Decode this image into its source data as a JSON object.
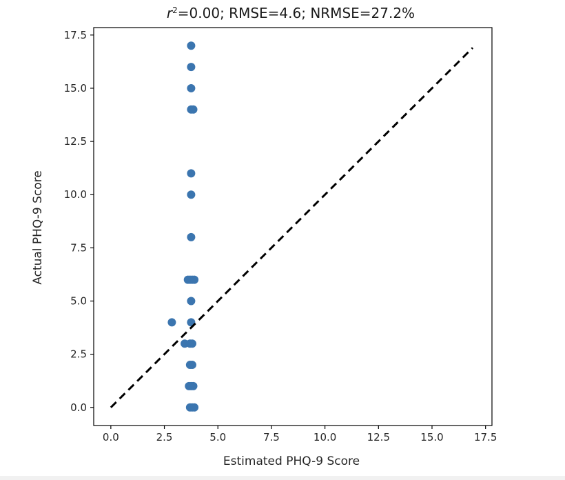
{
  "chart_data": {
    "type": "scatter",
    "title": {
      "r2_symbol": "r",
      "r2_exp": "2",
      "rest": "=0.00; RMSE=4.6; NRMSE=27.2%"
    },
    "xlabel": "Estimated PHQ-9 Score",
    "ylabel": "Actual PHQ-9 Score",
    "xlim": [
      -0.8,
      17.8
    ],
    "ylim": [
      -0.85,
      17.85
    ],
    "xticks": [
      0,
      2.5,
      5,
      7.5,
      10,
      12.5,
      15,
      17.5
    ],
    "xtick_labels": [
      "0.0",
      "2.5",
      "5.0",
      "7.5",
      "10.0",
      "12.5",
      "15.0",
      "17.5"
    ],
    "yticks": [
      0,
      2.5,
      5,
      7.5,
      10,
      12.5,
      15,
      17.5
    ],
    "ytick_labels": [
      "0.0",
      "2.5",
      "5.0",
      "7.5",
      "10.0",
      "12.5",
      "15.0",
      "17.5"
    ],
    "grid": false,
    "marker_color": "#3b75af",
    "reference_line": {
      "style": "dashed",
      "color": "#000000",
      "x": [
        0,
        16.9
      ],
      "y": [
        0,
        16.9
      ]
    },
    "series": [
      {
        "points": [
          {
            "x": 3.75,
            "y": 17
          },
          {
            "x": 3.75,
            "y": 16
          },
          {
            "x": 3.75,
            "y": 15
          },
          {
            "x": 3.75,
            "y": 14
          },
          {
            "x": 3.85,
            "y": 14
          },
          {
            "x": 3.75,
            "y": 11
          },
          {
            "x": 3.75,
            "y": 10
          },
          {
            "x": 3.75,
            "y": 8
          },
          {
            "x": 3.6,
            "y": 6
          },
          {
            "x": 3.7,
            "y": 6
          },
          {
            "x": 3.8,
            "y": 6
          },
          {
            "x": 3.9,
            "y": 6
          },
          {
            "x": 3.75,
            "y": 5
          },
          {
            "x": 2.85,
            "y": 4
          },
          {
            "x": 3.75,
            "y": 4
          },
          {
            "x": 3.45,
            "y": 3
          },
          {
            "x": 3.7,
            "y": 3
          },
          {
            "x": 3.8,
            "y": 3
          },
          {
            "x": 3.7,
            "y": 2
          },
          {
            "x": 3.8,
            "y": 2
          },
          {
            "x": 3.65,
            "y": 1
          },
          {
            "x": 3.75,
            "y": 1
          },
          {
            "x": 3.85,
            "y": 1
          },
          {
            "x": 3.7,
            "y": 0
          },
          {
            "x": 3.8,
            "y": 0
          },
          {
            "x": 3.9,
            "y": 0
          }
        ]
      }
    ]
  }
}
